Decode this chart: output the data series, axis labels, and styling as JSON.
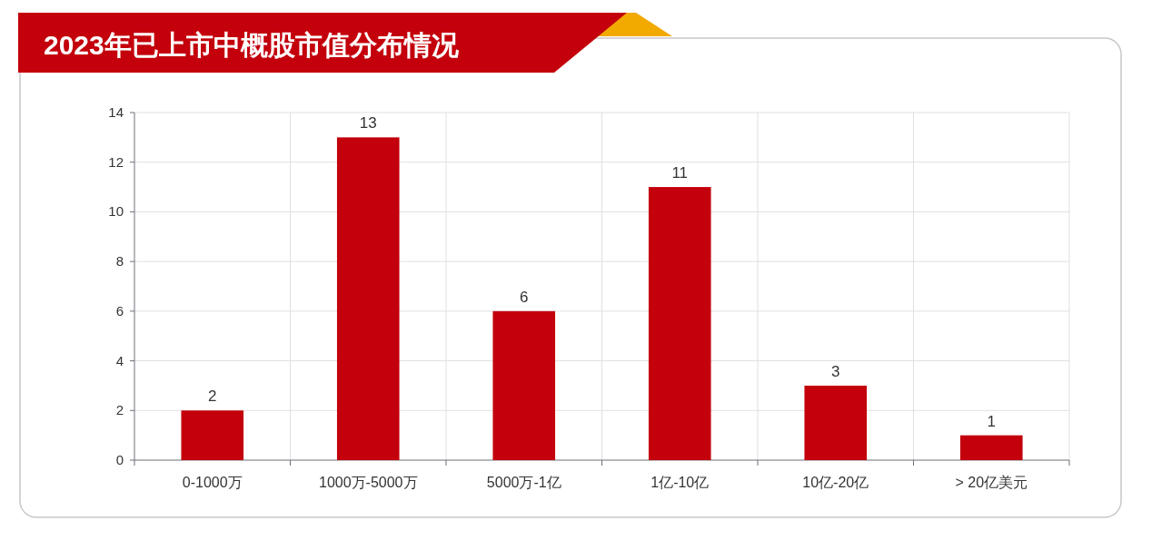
{
  "chart_data": {
    "type": "bar",
    "title": "2023年已上市中概股市值分布情况",
    "categories": [
      "0-1000万",
      "1000万-5000万",
      "5000万-1亿",
      "1亿-10亿",
      "10亿-20亿",
      "> 20亿美元"
    ],
    "values": [
      2,
      13,
      6,
      11,
      3,
      1
    ],
    "color": "#c3000b",
    "ylim": [
      0,
      14
    ],
    "yticks": [
      0,
      2,
      4,
      6,
      8,
      10,
      12,
      14
    ],
    "grid": true,
    "data_labels": true
  }
}
